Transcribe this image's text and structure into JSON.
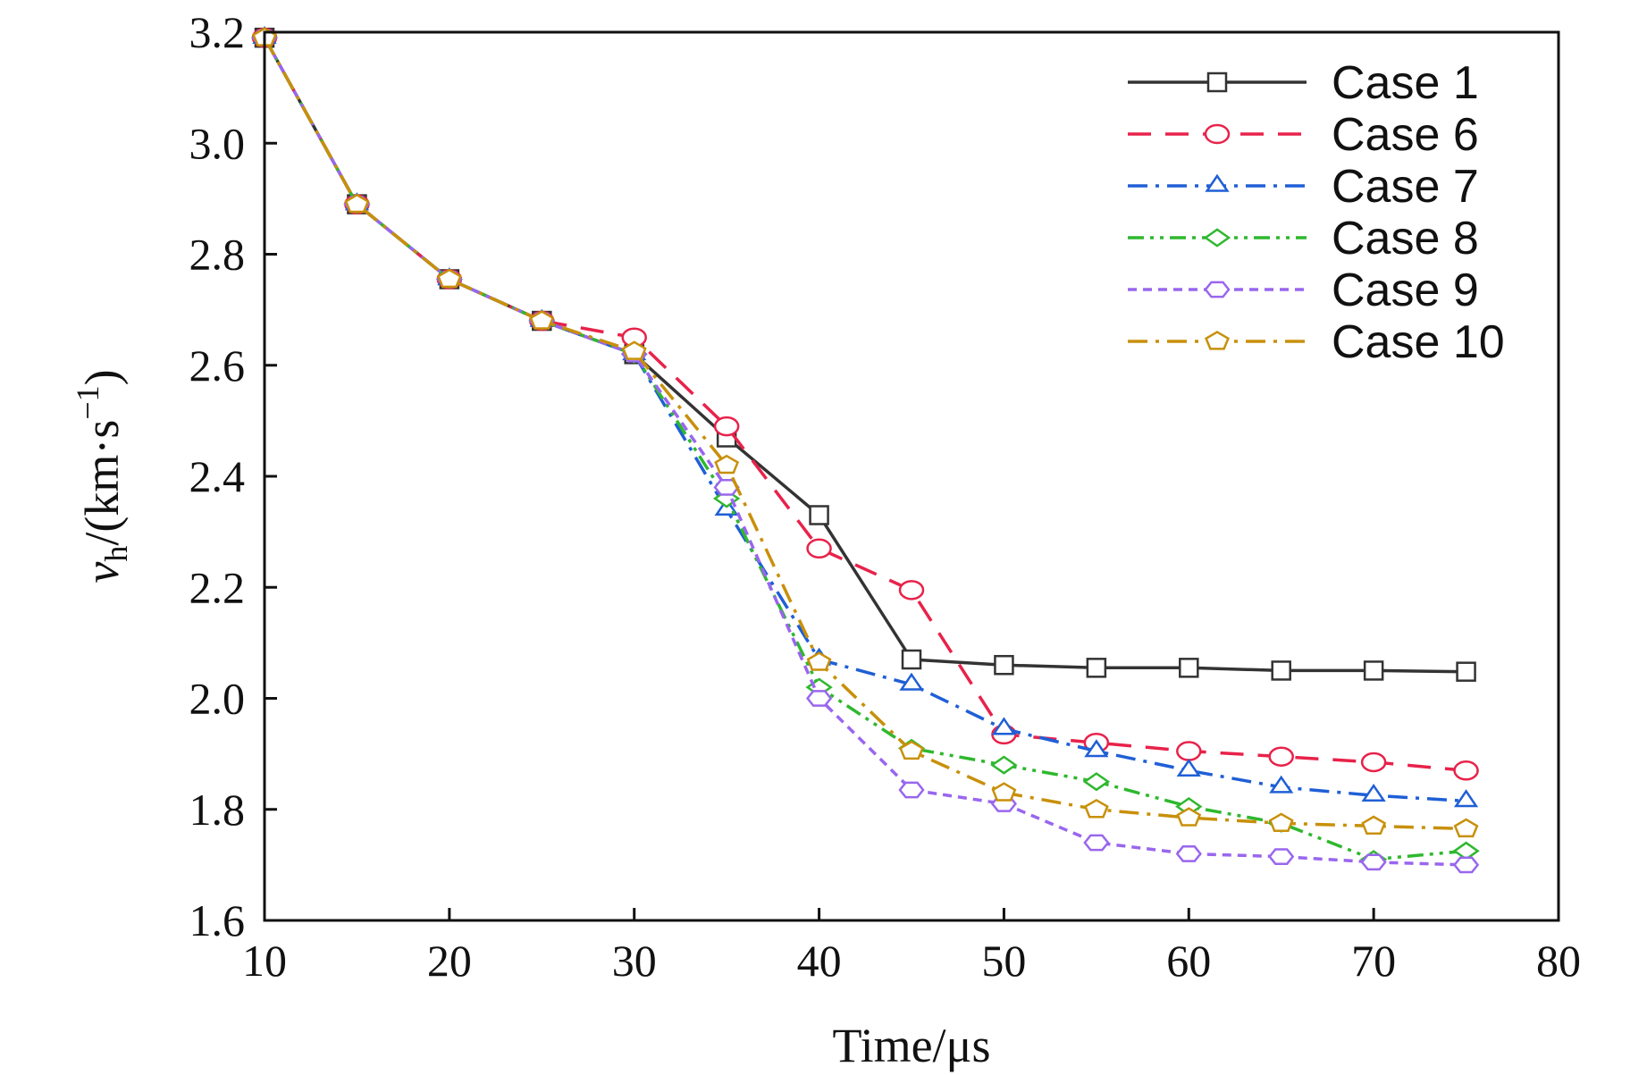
{
  "chart_data": {
    "type": "line",
    "title": "",
    "xlabel": "Time/μs",
    "ylabel": {
      "var": "v",
      "sub": "h",
      "unit": "/(km·s",
      "sup": "−1",
      "close": ")"
    },
    "xlim": [
      10,
      80
    ],
    "ylim": [
      1.6,
      3.2
    ],
    "xticks": [
      10,
      20,
      30,
      40,
      50,
      60,
      70,
      80
    ],
    "yticks": [
      1.6,
      1.8,
      2.0,
      2.2,
      2.4,
      2.6,
      2.8,
      3.0,
      3.2
    ],
    "ytick_labels": [
      "1.6",
      "1.8",
      "2.0",
      "2.2",
      "2.4",
      "2.6",
      "2.8",
      "3.0",
      "3.2"
    ],
    "grid": false,
    "legend_position": "top-right",
    "x": [
      10,
      15,
      20,
      25,
      30,
      35,
      40,
      45,
      50,
      55,
      60,
      65,
      70,
      75
    ],
    "series": [
      {
        "name": "Case 1",
        "color": "#333333",
        "dash": "solid",
        "marker": "square",
        "values": [
          3.19,
          2.89,
          2.755,
          2.68,
          2.62,
          2.47,
          2.33,
          2.07,
          2.06,
          2.055,
          2.055,
          2.05,
          2.05,
          2.048
        ]
      },
      {
        "name": "Case 6",
        "color": "#e8224a",
        "dash": "dash",
        "marker": "circle",
        "values": [
          3.19,
          2.89,
          2.755,
          2.68,
          2.65,
          2.49,
          2.27,
          2.195,
          1.935,
          1.92,
          1.905,
          1.895,
          1.885,
          1.87
        ]
      },
      {
        "name": "Case 7",
        "color": "#1f5fd6",
        "dash": "dashdot",
        "marker": "triangle",
        "values": [
          3.19,
          2.89,
          2.755,
          2.68,
          2.62,
          2.34,
          2.07,
          2.025,
          1.945,
          1.905,
          1.87,
          1.84,
          1.825,
          1.815
        ]
      },
      {
        "name": "Case 8",
        "color": "#2eb82e",
        "dash": "dashdotdot",
        "marker": "diamond",
        "values": [
          3.19,
          2.89,
          2.755,
          2.68,
          2.62,
          2.36,
          2.02,
          1.91,
          1.88,
          1.85,
          1.805,
          1.775,
          1.71,
          1.725
        ]
      },
      {
        "name": "Case 9",
        "color": "#9966ee",
        "dash": "shortdash",
        "marker": "hexagon",
        "values": [
          3.19,
          2.89,
          2.755,
          2.68,
          2.62,
          2.38,
          2.0,
          1.835,
          1.81,
          1.74,
          1.72,
          1.715,
          1.705,
          1.7
        ]
      },
      {
        "name": "Case 10",
        "color": "#c8900a",
        "dash": "dashdot",
        "marker": "pentagon",
        "values": [
          3.19,
          2.89,
          2.755,
          2.68,
          2.625,
          2.42,
          2.065,
          1.905,
          1.83,
          1.8,
          1.785,
          1.775,
          1.77,
          1.765
        ]
      }
    ]
  }
}
